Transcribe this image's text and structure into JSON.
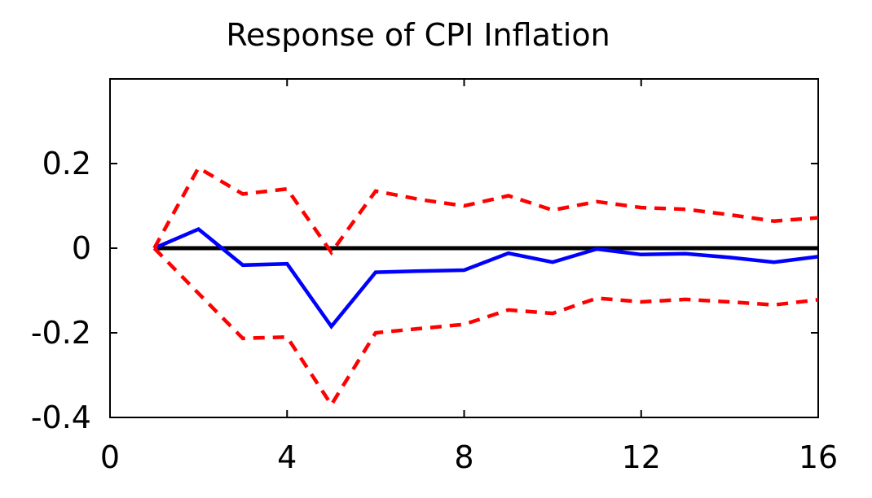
{
  "chart_data": {
    "type": "line",
    "title": "Response of CPI Inflation",
    "xlabel": "",
    "ylabel": "",
    "xlim": [
      0,
      16
    ],
    "ylim": [
      -0.4,
      0.4
    ],
    "x_ticks": [
      {
        "value": 0,
        "label": "0"
      },
      {
        "value": 4,
        "label": "4"
      },
      {
        "value": 8,
        "label": "8"
      },
      {
        "value": 12,
        "label": "12"
      },
      {
        "value": 16,
        "label": "16"
      }
    ],
    "y_ticks": [
      {
        "value": 0.2,
        "label": "0.2"
      },
      {
        "value": 0,
        "label": "0"
      },
      {
        "value": -0.2,
        "label": "-0.2"
      },
      {
        "value": -0.4,
        "label": "-0.4"
      }
    ],
    "grid": false,
    "legend": "none",
    "zero_line": {
      "value": 0,
      "color": "#000000"
    },
    "x": [
      1,
      2,
      3,
      4,
      5,
      6,
      7,
      8,
      9,
      10,
      11,
      12,
      13,
      14,
      15,
      16
    ],
    "series": [
      {
        "id": "response",
        "style": "solid",
        "color": "#0000ff",
        "values": [
          0.0,
          0.045,
          -0.04,
          -0.037,
          -0.185,
          -0.057,
          -0.054,
          -0.052,
          -0.012,
          -0.033,
          -0.002,
          -0.015,
          -0.013,
          -0.022,
          -0.033,
          -0.02
        ]
      },
      {
        "id": "upper-band",
        "style": "dashed",
        "color": "#ff0000",
        "values": [
          0.0,
          0.19,
          0.128,
          0.14,
          -0.01,
          0.135,
          0.115,
          0.1,
          0.124,
          0.09,
          0.11,
          0.096,
          0.092,
          0.079,
          0.064,
          0.072
        ]
      },
      {
        "id": "lower-band",
        "style": "dashed",
        "color": "#ff0000",
        "values": [
          0.0,
          -0.107,
          -0.213,
          -0.21,
          -0.37,
          -0.2,
          -0.19,
          -0.18,
          -0.146,
          -0.154,
          -0.118,
          -0.127,
          -0.121,
          -0.127,
          -0.134,
          -0.122
        ]
      }
    ]
  }
}
